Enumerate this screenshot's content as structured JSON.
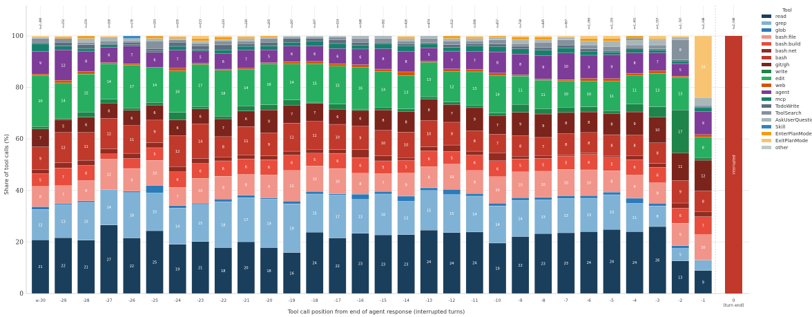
{
  "chart_data": {
    "type": "bar",
    "stacked": true,
    "title": "",
    "xlabel": "Tool call position from end of agent response (interrupted turns)",
    "ylabel": "Share of tool calls (%)",
    "ylim": [
      0,
      100
    ],
    "yticks": [
      0,
      20,
      40,
      60,
      80,
      100
    ],
    "grid": true,
    "legend_title": "Tool",
    "legend_position": "right",
    "categories": [
      "≤-30",
      "-29",
      "-28",
      "-27",
      "-26",
      "-25",
      "-24",
      "-23",
      "-22",
      "-21",
      "-20",
      "-19",
      "-18",
      "-17",
      "-16",
      "-15",
      "-14",
      "-13",
      "-12",
      "-11",
      "-10",
      "-9",
      "-8",
      "-7",
      "-6",
      "-5",
      "-4",
      "-3",
      "-2",
      "-1"
    ],
    "n_labels": [
      "n=2,466",
      "n=152",
      "n=159",
      "n=168",
      "n=178",
      "n=183",
      "n=205",
      "n=213",
      "n=233",
      "n=249",
      "n=265",
      "n=287",
      "n=307",
      "n=324",
      "n=348",
      "n=382",
      "n=426",
      "n=474",
      "n=522",
      "n=586",
      "n=657",
      "n=738",
      "n=845",
      "n=967",
      "n=1,069",
      "n=1,253",
      "n=1,401",
      "n=1,557",
      "n=1,767",
      "n=2,048"
    ],
    "series": [
      {
        "name": "read",
        "color": "#1a3f5c",
        "values": [
          21,
          22,
          21,
          27,
          22,
          25,
          19,
          21,
          18,
          20,
          18,
          16,
          24,
          22,
          23,
          23,
          23,
          24,
          24,
          24,
          19,
          22,
          23,
          23,
          24,
          24,
          24,
          26,
          13,
          9
        ]
      },
      {
        "name": "grep",
        "color": "#7fb2d5",
        "values": [
          12,
          13,
          15,
          14,
          18,
          15,
          14,
          15,
          18,
          17,
          19,
          19,
          15,
          17,
          13,
          16,
          13,
          15,
          15,
          14,
          14,
          14,
          13,
          13,
          13,
          13,
          11,
          8,
          5,
          4
        ]
      },
      {
        "name": "glob",
        "color": "#2b7bba",
        "values": [
          1,
          0.5,
          0.5,
          0,
          0.5,
          3,
          1,
          0.5,
          1,
          1,
          0.5,
          1,
          1,
          0.5,
          2,
          1,
          2,
          1,
          2,
          1,
          1,
          1,
          1,
          1,
          1,
          1,
          2,
          1,
          1,
          0
        ]
      },
      {
        "name": "bash:file",
        "color": "#f1948a",
        "values": [
          8,
          7,
          8,
          12,
          9,
          10,
          7,
          10,
          9,
          8,
          9,
          12,
          10,
          10,
          8,
          7,
          9,
          8,
          10,
          9,
          10,
          10,
          10,
          10,
          10,
          8,
          9,
          8,
          9,
          10
        ]
      },
      {
        "name": "bash:build",
        "color": "#e74c3c",
        "values": [
          5,
          7,
          6,
          2,
          4,
          5,
          6,
          6,
          6,
          6,
          6,
          6,
          5,
          6,
          6,
          5,
          5,
          6,
          5,
          6,
          6,
          5,
          5,
          5,
          6,
          5,
          6,
          6,
          6,
          7
        ]
      },
      {
        "name": "bash:net",
        "color": "#922b21",
        "values": [
          1.5,
          2,
          2,
          2,
          2,
          2,
          2,
          2,
          1.5,
          1.5,
          1.5,
          1.5,
          1.5,
          1.5,
          3,
          2,
          1,
          1.5,
          2.5,
          1.5,
          3,
          1,
          1,
          0.5,
          0.5,
          0.5,
          1.5,
          1.5,
          2,
          2
        ]
      },
      {
        "name": "bash",
        "color": "#c0392b",
        "values": [
          9,
          12,
          11,
          12,
          11,
          9,
          12,
          14,
          8,
          11,
          9,
          11,
          11,
          10,
          9,
          10,
          10,
          10,
          9,
          8,
          7,
          8,
          7,
          8,
          8,
          8,
          8,
          8,
          9,
          8
        ]
      },
      {
        "name": "git/gh",
        "color": "#7b241c",
        "values": [
          7,
          5,
          6,
          6,
          6,
          6,
          6,
          6,
          7,
          6,
          9,
          7,
          7,
          6,
          6,
          8,
          8,
          8,
          7,
          9,
          7,
          9,
          9,
          8,
          8,
          8,
          9,
          10,
          11,
          12
        ]
      },
      {
        "name": "write",
        "color": "#1e8449",
        "values": [
          1,
          0.5,
          2,
          1.5,
          1,
          1,
          3,
          1,
          1,
          2,
          2,
          2,
          0.5,
          2,
          0.5,
          1,
          1,
          1,
          1,
          1,
          1,
          3,
          2,
          2,
          2,
          1,
          3,
          4,
          17,
          1
        ]
      },
      {
        "name": "edit",
        "color": "#27ae60",
        "values": [
          20,
          14,
          15,
          14,
          17,
          14,
          16,
          17,
          18,
          14,
          16,
          14,
          15,
          15,
          16,
          14,
          13,
          13,
          12,
          13,
          14,
          11,
          11,
          10,
          10,
          11,
          11,
          13,
          13,
          8
        ]
      },
      {
        "name": "web",
        "color": "#d35400",
        "values": [
          0.5,
          1,
          1,
          0.5,
          0.5,
          0,
          1,
          0.5,
          0.5,
          0.5,
          0.5,
          1,
          1,
          1,
          1,
          1,
          1.5,
          0.5,
          1,
          1,
          1,
          0.5,
          0.5,
          0.5,
          1,
          1,
          1,
          1,
          0.5,
          1
        ]
      },
      {
        "name": "agent",
        "color": "#7d3c98",
        "values": [
          9,
          12,
          8,
          6,
          7,
          6,
          7,
          5,
          6,
          7,
          5,
          6,
          6,
          6,
          6,
          8,
          8,
          5,
          7,
          7,
          8,
          8,
          9,
          10,
          9,
          9,
          8,
          7,
          5,
          9
        ]
      },
      {
        "name": "mcp",
        "color": "#17806d",
        "values": [
          3,
          1.5,
          1,
          1,
          0.5,
          0.5,
          1.5,
          0.5,
          1.5,
          1.5,
          1.5,
          1.5,
          2,
          2,
          1.5,
          2,
          2,
          1.5,
          1.5,
          2,
          2,
          2,
          2,
          2,
          1.5,
          1,
          1.5,
          1,
          1,
          1.5
        ]
      },
      {
        "name": "TodoWrite",
        "color": "#5d6d7e",
        "values": [
          0.5,
          1.5,
          1.5,
          0.5,
          1,
          1,
          1.5,
          1.5,
          2,
          1,
          1.5,
          1.5,
          1,
          1.5,
          1,
          0.5,
          1,
          0.5,
          1,
          1,
          1,
          1,
          1,
          1,
          1,
          0.5,
          0.5,
          0.5,
          0.5,
          0.5
        ]
      },
      {
        "name": "ToolSearch",
        "color": "#85929e",
        "values": [
          1.5,
          1.5,
          1,
          1,
          0.5,
          3,
          1,
          1,
          1.5,
          1,
          1.5,
          0.5,
          0.5,
          1,
          1.5,
          1.5,
          1,
          1.5,
          1.5,
          1,
          1.5,
          1,
          2,
          2,
          1.5,
          1.5,
          1,
          1.5,
          8,
          0.5
        ]
      },
      {
        "name": "AskUserQuestion",
        "color": "#aab7b8",
        "values": [
          0.5,
          0,
          1.5,
          1.5,
          1,
          1,
          0.5,
          1,
          0.5,
          1,
          0.5,
          0.5,
          0.5,
          0.5,
          1,
          1,
          1,
          1,
          1,
          1,
          1,
          1.5,
          1,
          1,
          1.5,
          2,
          2,
          2,
          1,
          3
        ]
      },
      {
        "name": "Skill",
        "color": "#2e86c1",
        "values": [
          0,
          0,
          0,
          0,
          1,
          0,
          0,
          0,
          0,
          0,
          0,
          0,
          0,
          0,
          0,
          0,
          0,
          0,
          0,
          0,
          0,
          0,
          0,
          0,
          0,
          0,
          0.5,
          0,
          0,
          0
        ]
      },
      {
        "name": "EnterPlanMode",
        "color": "#f39c12",
        "values": [
          0,
          0.5,
          1,
          0,
          0,
          1,
          0.5,
          1,
          1,
          0.5,
          0.5,
          0,
          0,
          0,
          0,
          0,
          0.5,
          0,
          1,
          0.5,
          0.5,
          1,
          1,
          0,
          1,
          1,
          1,
          0.5,
          0,
          0
        ]
      },
      {
        "name": "ExitPlanMode",
        "color": "#f8c471",
        "values": [
          0.5,
          0.5,
          0,
          0.5,
          0,
          0,
          0.5,
          1,
          0.5,
          0.5,
          0,
          0,
          0,
          0,
          0,
          0,
          0.5,
          0,
          0,
          0.5,
          0,
          0.5,
          0.5,
          0.5,
          1,
          1,
          0,
          1,
          0.5,
          24
        ]
      },
      {
        "name": "other",
        "color": "#bfc9ca",
        "values": [
          0,
          0,
          0,
          0,
          0,
          0,
          0,
          0,
          0,
          0,
          0,
          0,
          0,
          0,
          0,
          0,
          0,
          0,
          0,
          0,
          0,
          0,
          0,
          0,
          0,
          0,
          0,
          0,
          0,
          0
        ]
      }
    ],
    "end_bar": {
      "category": "0",
      "sublabel": "(turn end)",
      "n_label": "n=2,048",
      "label": "interrupted",
      "value": 100,
      "color": "#c0392b"
    }
  }
}
